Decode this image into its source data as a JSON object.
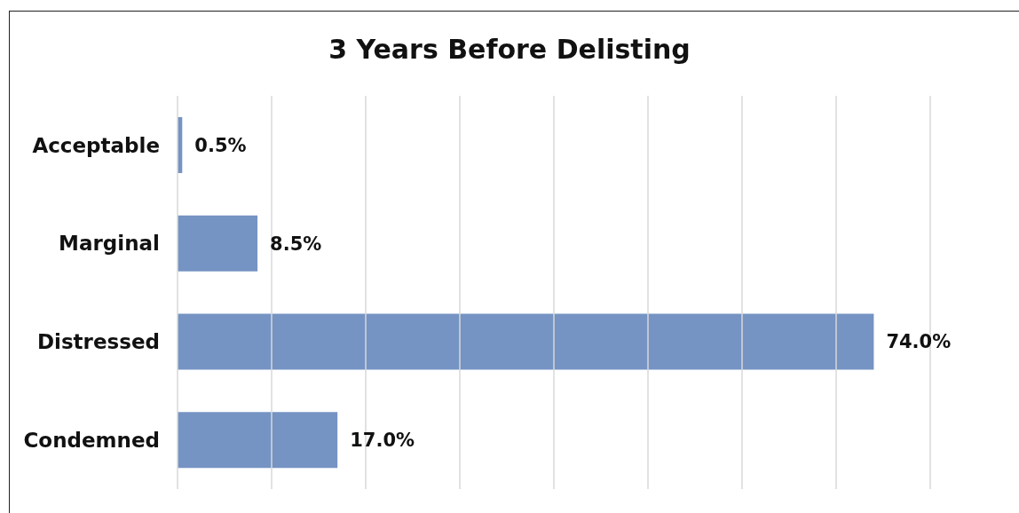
{
  "chart_data": {
    "type": "bar",
    "orientation": "horizontal",
    "title": "3 Years Before Delisting",
    "categories": [
      "Acceptable",
      "Marginal",
      "Distressed",
      "Condemned"
    ],
    "values": [
      0.5,
      8.5,
      74.0,
      17.0
    ],
    "value_labels": [
      "0.5%",
      "8.5%",
      "74.0%",
      "17.0%"
    ],
    "color": "#7593c3",
    "xlim": [
      0,
      80
    ],
    "xticks": [
      {
        "value": 0,
        "label": null
      },
      {
        "value": 10,
        "label": null
      },
      {
        "value": 20,
        "label": null
      },
      {
        "value": 30,
        "label": null
      },
      {
        "value": 40,
        "label": null
      },
      {
        "value": 50,
        "label": null
      },
      {
        "value": 60,
        "label": null
      },
      {
        "value": 70,
        "label": null
      },
      {
        "value": 80,
        "label": null
      }
    ],
    "grid": "x",
    "tick_labels": "y"
  }
}
